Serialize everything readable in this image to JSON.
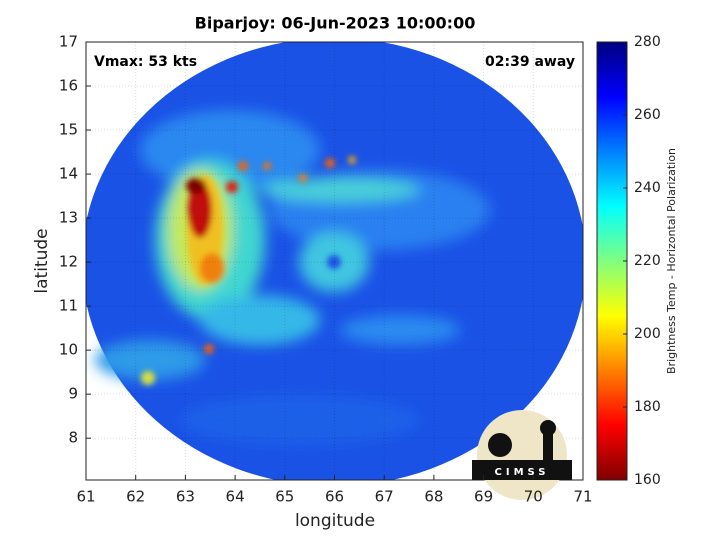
{
  "chart_data": {
    "type": "image",
    "title": "Biparjoy: 06-Jun-2023 10:00:00",
    "xlabel": "longitude",
    "ylabel": "latitude",
    "xlim": [
      61,
      71
    ],
    "xticks": [
      61,
      62,
      63,
      64,
      65,
      66,
      67,
      68,
      69,
      70,
      71
    ],
    "ylim": [
      7.05,
      17
    ],
    "yticks": [
      8,
      9,
      10,
      11,
      12,
      13,
      14,
      15,
      16,
      17
    ],
    "grid": true,
    "annotations": [
      "Vmax: 53 kts",
      "02:39 away"
    ],
    "colorbar": {
      "label": "Brightness Temp - Horizontal Polarization",
      "clim": [
        160,
        280
      ],
      "ticks": [
        160,
        180,
        200,
        220,
        240,
        260,
        280
      ],
      "colormap": "jet"
    },
    "logo": "CIMSS"
  }
}
